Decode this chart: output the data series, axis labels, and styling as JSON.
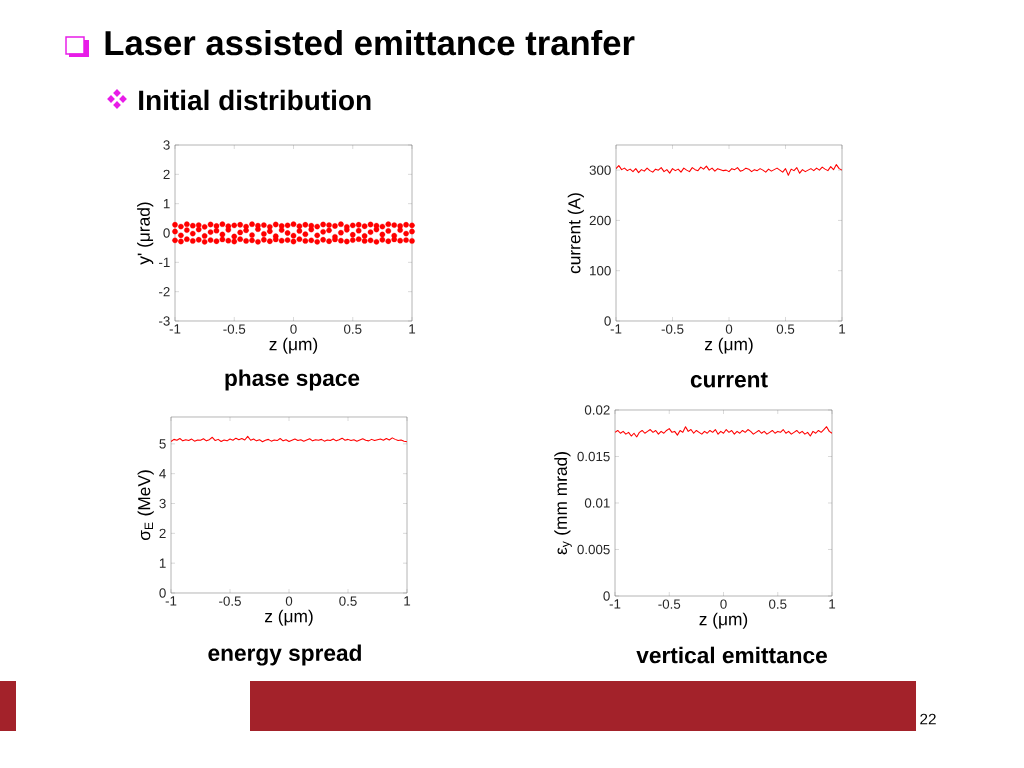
{
  "chart_data": [
    {
      "type": "other",
      "title": "Laser assisted emittance tranfer",
      "subtitle": "Initial distribution",
      "annotations": [
        "22"
      ]
    },
    {
      "type": "scatter",
      "title": "phase space",
      "xlabel": "z (μm)",
      "ylabel": "y' (μrad)",
      "marker": "circle",
      "x": [
        -1,
        -0.95,
        -0.9,
        -0.85,
        -0.8,
        -0.75,
        -0.7,
        -0.65,
        -0.6,
        -0.55,
        -0.5,
        -0.45,
        -0.4,
        -0.35,
        -0.3,
        -0.25,
        -0.2,
        -0.15,
        -0.1,
        -0.05,
        0,
        0.05,
        0.1,
        0.15,
        0.2,
        0.25,
        0.3,
        0.35,
        0.4,
        0.45,
        0.5,
        0.55,
        0.6,
        0.65,
        0.7,
        0.75,
        0.8,
        0.85,
        0.9,
        0.95,
        1,
        -1,
        -0.95,
        -0.9,
        -0.85,
        -0.8,
        -0.75,
        -0.7,
        -0.65,
        -0.6,
        -0.55,
        -0.5,
        -0.45,
        -0.4,
        -0.35,
        -0.3,
        -0.25,
        -0.2,
        -0.15,
        -0.1,
        -0.05,
        0,
        0.05,
        0.1,
        0.15,
        0.2,
        0.25,
        0.3,
        0.35,
        0.4,
        0.45,
        0.5,
        0.55,
        0.6,
        0.65,
        0.7,
        0.75,
        0.8,
        0.85,
        0.9,
        0.95,
        1,
        -1,
        -0.95,
        -0.9,
        -0.85,
        -0.8,
        -0.75,
        -0.7,
        -0.65,
        -0.6,
        -0.55,
        -0.5,
        -0.45,
        -0.4,
        -0.35,
        -0.3,
        -0.25,
        -0.2,
        -0.15,
        -0.1,
        -0.05,
        0,
        0.05,
        0.1,
        0.15,
        0.2,
        0.25,
        0.3,
        0.35,
        0.4,
        0.45,
        0.5,
        0.55,
        0.6,
        0.65,
        0.7,
        0.75,
        0.8,
        0.85,
        0.9,
        0.95,
        1
      ],
      "series": [
        {
          "color": "#ff0000",
          "values": [
            0.28,
            0.22,
            0.3,
            0.25,
            0.27,
            0.21,
            0.29,
            0.24,
            0.3,
            0.23,
            0.26,
            0.28,
            0.22,
            0.3,
            0.25,
            0.27,
            0.21,
            0.29,
            0.24,
            0.26,
            0.3,
            0.23,
            0.28,
            0.25,
            0.22,
            0.29,
            0.27,
            0.24,
            0.3,
            0.21,
            0.26,
            0.28,
            0.23,
            0.29,
            0.25,
            0.22,
            0.3,
            0.27,
            0.24,
            0.28,
            0.26,
            0.05,
            -0.08,
            0.1,
            -0.02,
            0.12,
            -0.1,
            0.03,
            0.08,
            -0.05,
            0.11,
            -0.12,
            0.02,
            0.09,
            -0.07,
            0.13,
            -0.03,
            0.06,
            -0.11,
            0.1,
            0,
            -0.09,
            0.07,
            -0.04,
            0.12,
            -0.08,
            0.04,
            0.09,
            -0.13,
            0.01,
            0.11,
            -0.06,
            0.08,
            -0.1,
            0.03,
            0.12,
            -0.05,
            0.07,
            -0.09,
            0.1,
            -0.02,
            0.05,
            -0.25,
            -0.29,
            -0.21,
            -0.27,
            -0.23,
            -0.3,
            -0.24,
            -0.28,
            -0.22,
            -0.26,
            -0.29,
            -0.21,
            -0.27,
            -0.25,
            -0.3,
            -0.23,
            -0.28,
            -0.22,
            -0.26,
            -0.24,
            -0.29,
            -0.21,
            -0.27,
            -0.25,
            -0.3,
            -0.23,
            -0.28,
            -0.22,
            -0.26,
            -0.29,
            -0.24,
            -0.21,
            -0.27,
            -0.25,
            -0.3,
            -0.23,
            -0.28,
            -0.22,
            -0.26,
            -0.24,
            -0.27
          ]
        }
      ],
      "xlim": [
        -1,
        1
      ],
      "ylim": [
        -3,
        3
      ],
      "xticks": [
        -1,
        -0.5,
        0,
        0.5,
        1
      ],
      "yticks": [
        -3,
        -2,
        -1,
        0,
        1,
        2,
        3
      ]
    },
    {
      "type": "line",
      "title": "current",
      "xlabel": "z (μm)",
      "ylabel": "current (A)",
      "x": [
        -1,
        -0.975,
        -0.95,
        -0.925,
        -0.9,
        -0.875,
        -0.85,
        -0.825,
        -0.8,
        -0.775,
        -0.75,
        -0.725,
        -0.7,
        -0.675,
        -0.65,
        -0.625,
        -0.6,
        -0.575,
        -0.55,
        -0.525,
        -0.5,
        -0.475,
        -0.45,
        -0.425,
        -0.4,
        -0.375,
        -0.35,
        -0.325,
        -0.3,
        -0.275,
        -0.25,
        -0.225,
        -0.2,
        -0.175,
        -0.15,
        -0.125,
        -0.1,
        -0.075,
        -0.05,
        -0.025,
        0,
        0.025,
        0.05,
        0.075,
        0.1,
        0.125,
        0.15,
        0.175,
        0.2,
        0.225,
        0.25,
        0.275,
        0.3,
        0.325,
        0.35,
        0.375,
        0.4,
        0.425,
        0.45,
        0.475,
        0.5,
        0.525,
        0.55,
        0.575,
        0.6,
        0.625,
        0.65,
        0.675,
        0.7,
        0.725,
        0.75,
        0.775,
        0.8,
        0.825,
        0.85,
        0.875,
        0.9,
        0.925,
        0.95,
        0.975,
        1
      ],
      "series": [
        {
          "color": "#ff0000",
          "values": [
            303,
            309,
            301,
            304,
            299,
            302,
            297,
            303,
            295,
            301,
            298,
            304,
            299,
            296,
            302,
            300,
            305,
            297,
            301,
            294,
            303,
            299,
            302,
            296,
            304,
            300,
            297,
            305,
            301,
            299,
            306,
            302,
            308,
            300,
            304,
            298,
            303,
            301,
            299,
            300,
            297,
            303,
            301,
            305,
            298,
            300,
            304,
            302,
            297,
            301,
            299,
            303,
            300,
            296,
            302,
            298,
            301,
            304,
            300,
            296,
            303,
            290,
            302,
            299,
            305,
            294,
            301,
            297,
            300,
            303,
            299,
            304,
            300,
            306,
            302,
            299,
            307,
            301,
            311,
            303,
            300
          ]
        }
      ],
      "xlim": [
        -1,
        1
      ],
      "ylim": [
        0,
        350
      ],
      "xticks": [
        -1,
        -0.5,
        0,
        0.5,
        1
      ],
      "yticks": [
        0,
        100,
        200,
        300
      ]
    },
    {
      "type": "line",
      "title": "energy spread",
      "xlabel": "z (μm)",
      "ylabel": "σ$_{E}$ (MeV)",
      "x": [
        -1,
        -0.975,
        -0.95,
        -0.925,
        -0.9,
        -0.875,
        -0.85,
        -0.825,
        -0.8,
        -0.775,
        -0.75,
        -0.725,
        -0.7,
        -0.675,
        -0.65,
        -0.625,
        -0.6,
        -0.575,
        -0.55,
        -0.525,
        -0.5,
        -0.475,
        -0.45,
        -0.425,
        -0.4,
        -0.375,
        -0.35,
        -0.325,
        -0.3,
        -0.275,
        -0.25,
        -0.225,
        -0.2,
        -0.175,
        -0.15,
        -0.125,
        -0.1,
        -0.075,
        -0.05,
        -0.025,
        0,
        0.025,
        0.05,
        0.075,
        0.1,
        0.125,
        0.15,
        0.175,
        0.2,
        0.225,
        0.25,
        0.275,
        0.3,
        0.325,
        0.35,
        0.375,
        0.4,
        0.425,
        0.45,
        0.475,
        0.5,
        0.525,
        0.55,
        0.575,
        0.6,
        0.625,
        0.65,
        0.675,
        0.7,
        0.725,
        0.75,
        0.775,
        0.8,
        0.825,
        0.85,
        0.875,
        0.9,
        0.925,
        0.95,
        0.975,
        1
      ],
      "series": [
        {
          "color": "#ff0000",
          "values": [
            5.08,
            5.15,
            5.12,
            5.18,
            5.1,
            5.14,
            5.11,
            5.16,
            5.09,
            5.13,
            5.12,
            5.17,
            5.1,
            5.14,
            5.22,
            5.11,
            5.15,
            5.08,
            5.13,
            5.1,
            5.16,
            5.12,
            5.19,
            5.14,
            5.18,
            5.13,
            5.25,
            5.12,
            5.16,
            5.1,
            5.14,
            5.07,
            5.12,
            5.15,
            5.09,
            5.13,
            5.11,
            5.18,
            5.1,
            5.14,
            5.08,
            5.12,
            5.16,
            5.11,
            5.14,
            5.09,
            5.13,
            5.17,
            5.1,
            5.14,
            5.12,
            5.15,
            5.09,
            5.13,
            5.11,
            5.16,
            5.1,
            5.14,
            5.19,
            5.12,
            5.15,
            5.11,
            5.14,
            5.09,
            5.13,
            5.17,
            5.12,
            5.1,
            5.15,
            5.11,
            5.14,
            5.16,
            5.12,
            5.18,
            5.13,
            5.2,
            5.15,
            5.11,
            5.13,
            5.09,
            5.07
          ]
        }
      ],
      "xlim": [
        -1,
        1
      ],
      "ylim": [
        0,
        5.9
      ],
      "xticks": [
        -1,
        -0.5,
        0,
        0.5,
        1
      ],
      "yticks": [
        0,
        1,
        2,
        3,
        4,
        5
      ]
    },
    {
      "type": "line",
      "title": "vertical emittance",
      "xlabel": "z (μm)",
      "ylabel": "ε$_{y}$ (mm mrad)",
      "x": [
        -1,
        -0.975,
        -0.95,
        -0.925,
        -0.9,
        -0.875,
        -0.85,
        -0.825,
        -0.8,
        -0.775,
        -0.75,
        -0.725,
        -0.7,
        -0.675,
        -0.65,
        -0.625,
        -0.6,
        -0.575,
        -0.55,
        -0.525,
        -0.5,
        -0.475,
        -0.45,
        -0.425,
        -0.4,
        -0.375,
        -0.35,
        -0.325,
        -0.3,
        -0.275,
        -0.25,
        -0.225,
        -0.2,
        -0.175,
        -0.15,
        -0.125,
        -0.1,
        -0.075,
        -0.05,
        -0.025,
        0,
        0.025,
        0.05,
        0.075,
        0.1,
        0.125,
        0.15,
        0.175,
        0.2,
        0.225,
        0.25,
        0.275,
        0.3,
        0.325,
        0.35,
        0.375,
        0.4,
        0.425,
        0.45,
        0.475,
        0.5,
        0.525,
        0.55,
        0.575,
        0.6,
        0.625,
        0.65,
        0.675,
        0.7,
        0.725,
        0.75,
        0.775,
        0.8,
        0.825,
        0.85,
        0.875,
        0.9,
        0.925,
        0.95,
        0.975,
        1
      ],
      "series": [
        {
          "color": "#ff0000",
          "values": [
            0.0176,
            0.0178,
            0.0175,
            0.0177,
            0.0174,
            0.0176,
            0.0172,
            0.0175,
            0.0171,
            0.0176,
            0.0178,
            0.0175,
            0.0177,
            0.0179,
            0.0176,
            0.0178,
            0.0174,
            0.0177,
            0.0175,
            0.0178,
            0.018,
            0.0176,
            0.0177,
            0.0173,
            0.0178,
            0.0176,
            0.0182,
            0.0177,
            0.0179,
            0.0175,
            0.0178,
            0.0176,
            0.0174,
            0.0177,
            0.0175,
            0.0178,
            0.0176,
            0.0179,
            0.0174,
            0.0177,
            0.0175,
            0.0179,
            0.0176,
            0.0178,
            0.0174,
            0.0177,
            0.0175,
            0.0178,
            0.0176,
            0.0179,
            0.0177,
            0.0174,
            0.0176,
            0.0178,
            0.0175,
            0.0177,
            0.0174,
            0.0176,
            0.0178,
            0.0175,
            0.0177,
            0.0176,
            0.0179,
            0.0175,
            0.0177,
            0.0174,
            0.0176,
            0.0178,
            0.0175,
            0.0177,
            0.0174,
            0.0176,
            0.0172,
            0.0177,
            0.0175,
            0.0178,
            0.0176,
            0.0179,
            0.0182,
            0.0177,
            0.0175
          ]
        }
      ],
      "xlim": [
        -1,
        1
      ],
      "ylim": [
        0,
        0.02
      ],
      "xticks": [
        -1,
        -0.5,
        0,
        0.5,
        1
      ],
      "yticks": [
        0,
        0.005,
        0.01,
        0.015,
        0.02
      ]
    }
  ]
}
